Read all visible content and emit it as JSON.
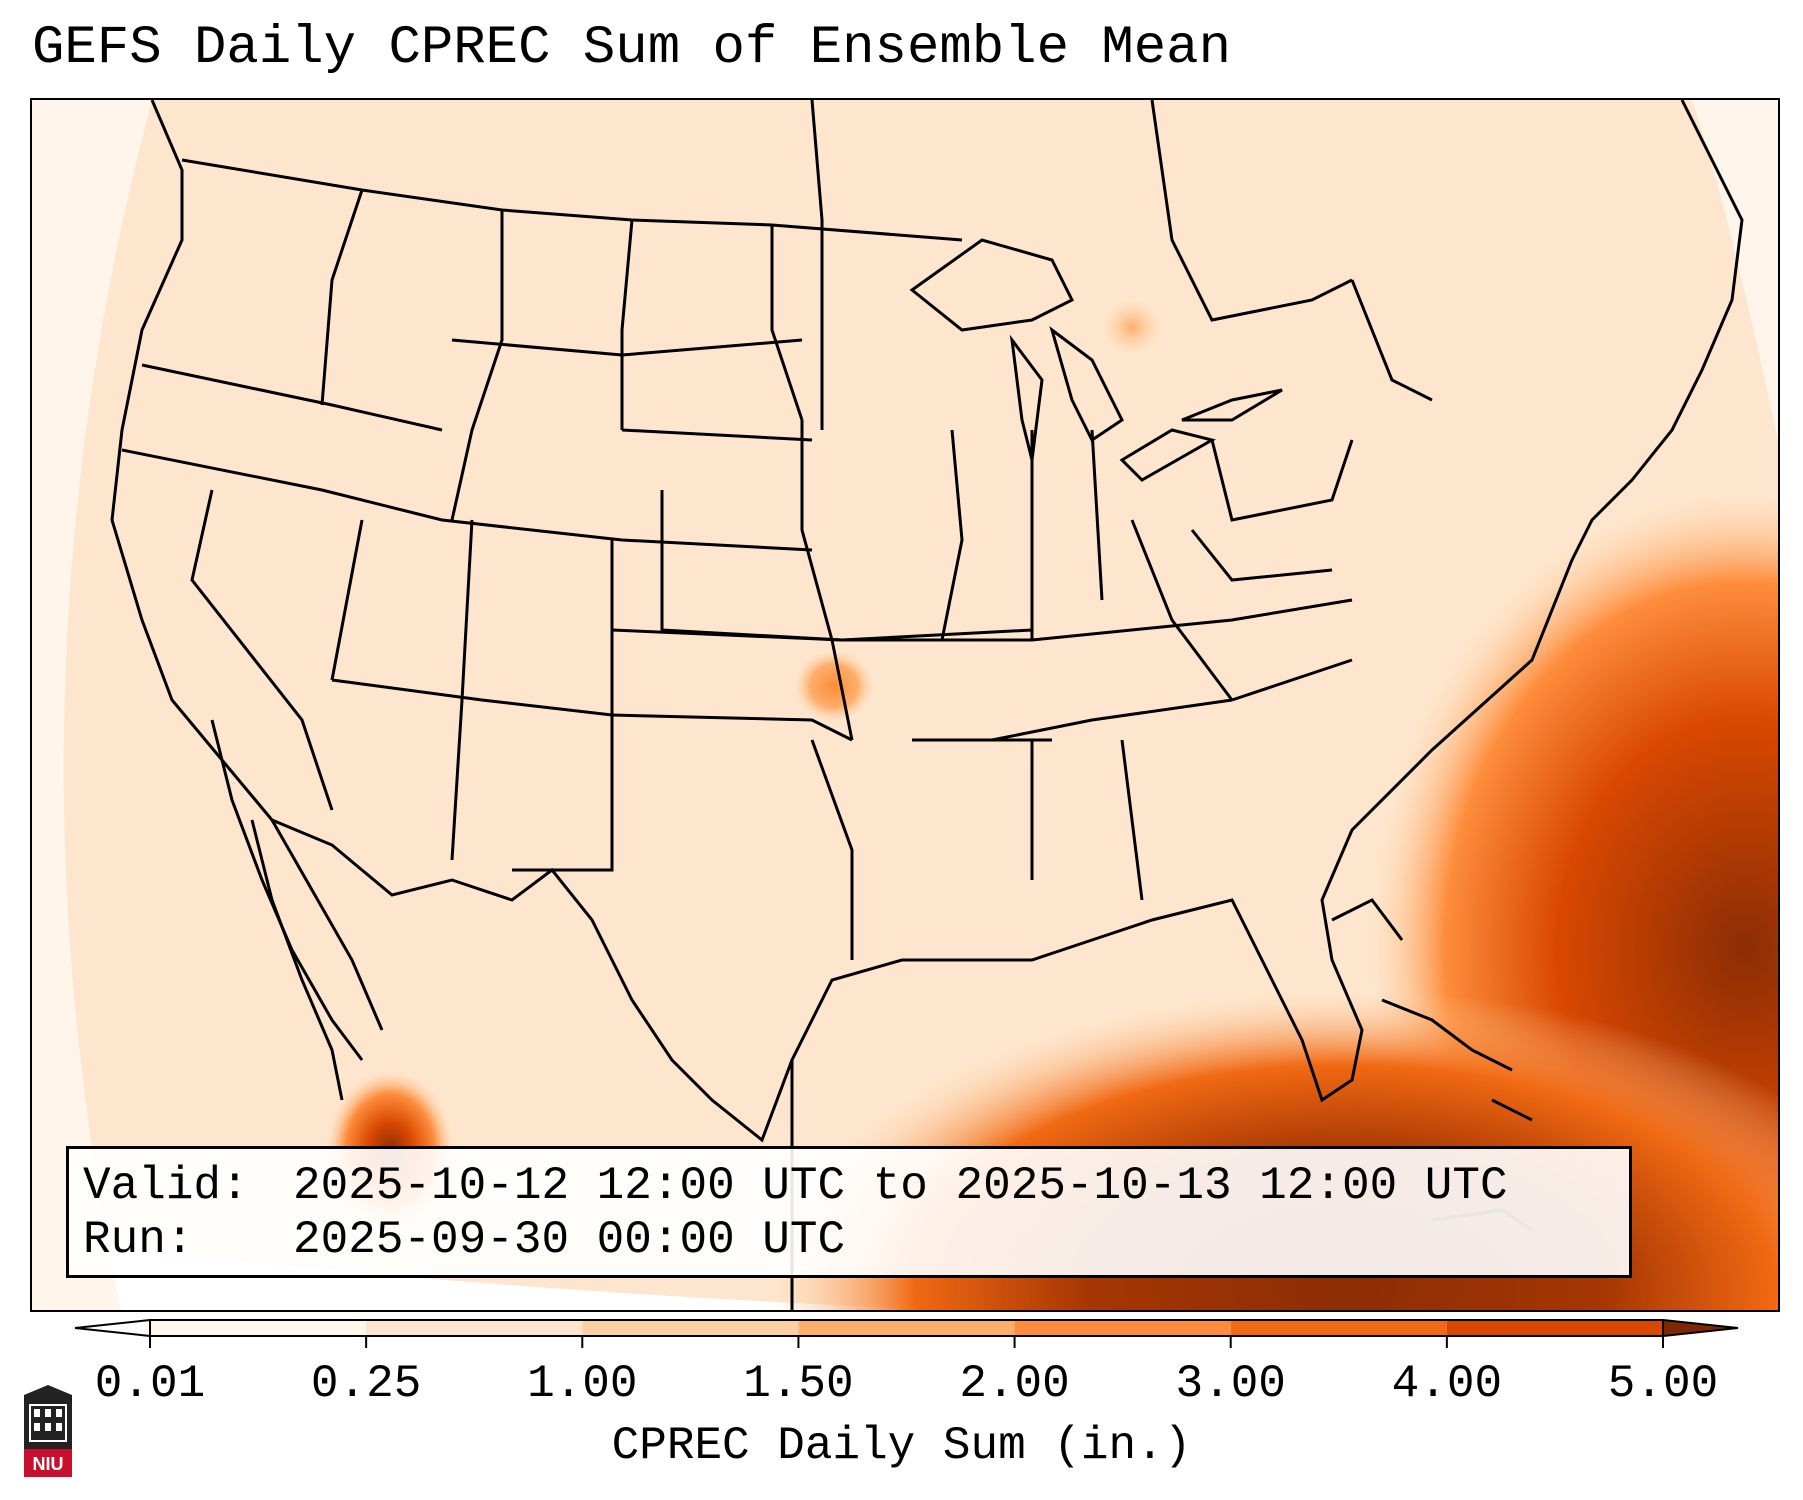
{
  "title": "GEFS Daily CPREC Sum of Ensemble Mean",
  "info": {
    "valid_label": "Valid:",
    "valid_value": "2025-10-12 12:00 UTC to 2025-10-13 12:00 UTC",
    "run_label": "Run:",
    "run_value": "2025-09-30 00:00 UTC"
  },
  "colorbar": {
    "label": "CPREC Daily Sum (in.)",
    "ticks": [
      "0.01",
      "0.25",
      "1.00",
      "1.50",
      "2.00",
      "3.00",
      "4.00",
      "5.00"
    ],
    "colors": [
      "#fff5eb",
      "#fee6ce",
      "#fdd0a2",
      "#fdae6b",
      "#fd8d3c",
      "#f16913",
      "#d94801",
      "#8c2d04"
    ],
    "under_color": "#ffffff",
    "over_color": "#7f2704"
  },
  "logo": {
    "icon": "niu-logo-icon",
    "text": "NIU",
    "color": "#c8102e"
  },
  "map": {
    "projection": "lambert-conformal-conus",
    "coastline_color": "#000000",
    "field": "CPREC ensemble mean daily sum"
  }
}
